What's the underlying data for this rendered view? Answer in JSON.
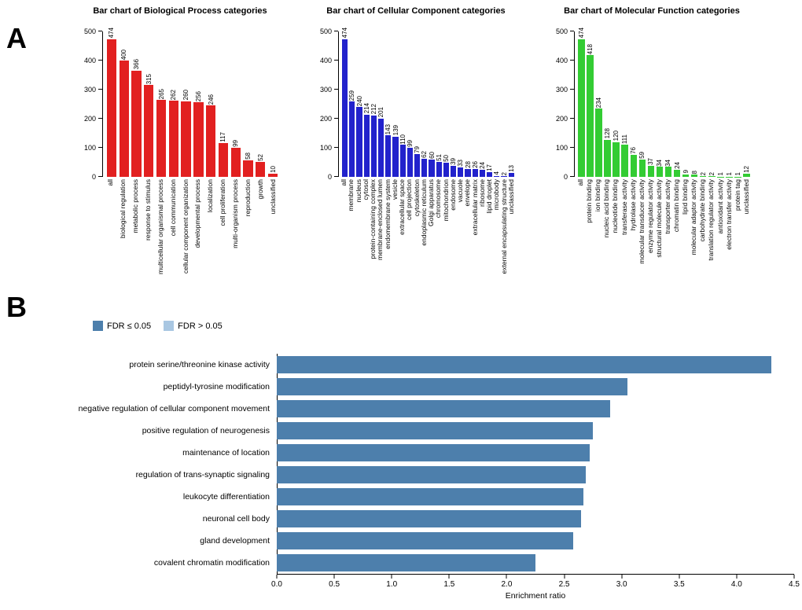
{
  "panels": {
    "a_label": "A",
    "b_label": "B"
  },
  "chart_data": [
    {
      "id": "biological-process",
      "type": "bar",
      "title": "Bar chart of Biological Process categories",
      "bar_color": "#e22020",
      "ylim": [
        0,
        500
      ],
      "yticks": [
        0,
        100,
        200,
        300,
        400,
        500
      ],
      "categories": [
        "all",
        "biological regulation",
        "metabolic process",
        "response to stimulus",
        "multicellular organismal process",
        "cell communication",
        "cellular component organization",
        "developmental process",
        "localization",
        "cell proliferation",
        "multi-organism process",
        "reproduction",
        "growth",
        "unclassified"
      ],
      "values": [
        474,
        400,
        366,
        315,
        265,
        262,
        260,
        256,
        246,
        117,
        99,
        58,
        52,
        10
      ]
    },
    {
      "id": "cellular-component",
      "type": "bar",
      "title": "Bar chart of Cellular Component categories",
      "bar_color": "#2222cc",
      "ylim": [
        0,
        500
      ],
      "yticks": [
        0,
        100,
        200,
        300,
        400,
        500
      ],
      "categories": [
        "all",
        "membrane",
        "nucleus",
        "cytosol",
        "protein-containing complex",
        "membrane-enclosed lumen",
        "endomembrane system",
        "vesicle",
        "extracellular space",
        "cell projection",
        "cytoskeleton",
        "endoplasmic reticulum",
        "Golgi apparatus",
        "chromosome",
        "mitochondrion",
        "endosome",
        "vacuole",
        "envelope",
        "extracellular matrix",
        "ribosome",
        "lipid droplet",
        "microbody",
        "external encapsulating structure",
        "unclassified"
      ],
      "values": [
        474,
        259,
        240,
        214,
        212,
        201,
        143,
        139,
        110,
        99,
        79,
        62,
        60,
        51,
        50,
        39,
        33,
        28,
        26,
        24,
        17,
        4,
        2,
        13
      ]
    },
    {
      "id": "molecular-function",
      "type": "bar",
      "title": "Bar chart of Molecular Function categories",
      "bar_color": "#33cc33",
      "ylim": [
        0,
        500
      ],
      "yticks": [
        0,
        100,
        200,
        300,
        400,
        500
      ],
      "categories": [
        "all",
        "protein binding",
        "ion binding",
        "nucleic acid binding",
        "nucleotide binding",
        "transferase activity",
        "hydrolase activity",
        "molecular transducer activity",
        "enzyme regulator activity",
        "structural molecule activity",
        "transporter activity",
        "chromatin binding",
        "lipid binding",
        "molecular adaptor activity",
        "carbohydrate binding",
        "translation regulator activity",
        "antioxidant activity",
        "electron transfer activity",
        "protein tag",
        "unclassified"
      ],
      "values": [
        474,
        418,
        234,
        128,
        120,
        111,
        76,
        59,
        37,
        34,
        34,
        24,
        9,
        8,
        2,
        2,
        1,
        1,
        1,
        12
      ]
    },
    {
      "id": "enrichment-ratio",
      "type": "hbar",
      "xlabel": "Enrichment ratio",
      "xlim": [
        0,
        4.5
      ],
      "xticks": [
        0,
        0.5,
        1,
        1.5,
        2,
        2.5,
        3,
        3.5,
        4,
        4.5
      ],
      "bar_color": "#4d7fac",
      "legend": [
        {
          "label": "FDR ≤ 0.05",
          "color": "#4d7fac"
        },
        {
          "label": "FDR > 0.05",
          "color": "#a9c7e2"
        }
      ],
      "categories": [
        "protein serine/threonine kinase activity",
        "peptidyl-tyrosine modification",
        "negative regulation of cellular component movement",
        "positive regulation of neurogenesis",
        "maintenance of location",
        "regulation of trans-synaptic signaling",
        "leukocyte differentiation",
        "neuronal cell body",
        "gland development",
        "covalent chromatin modification"
      ],
      "values": [
        4.3,
        3.05,
        2.9,
        2.75,
        2.72,
        2.69,
        2.67,
        2.65,
        2.58,
        2.25
      ]
    }
  ]
}
